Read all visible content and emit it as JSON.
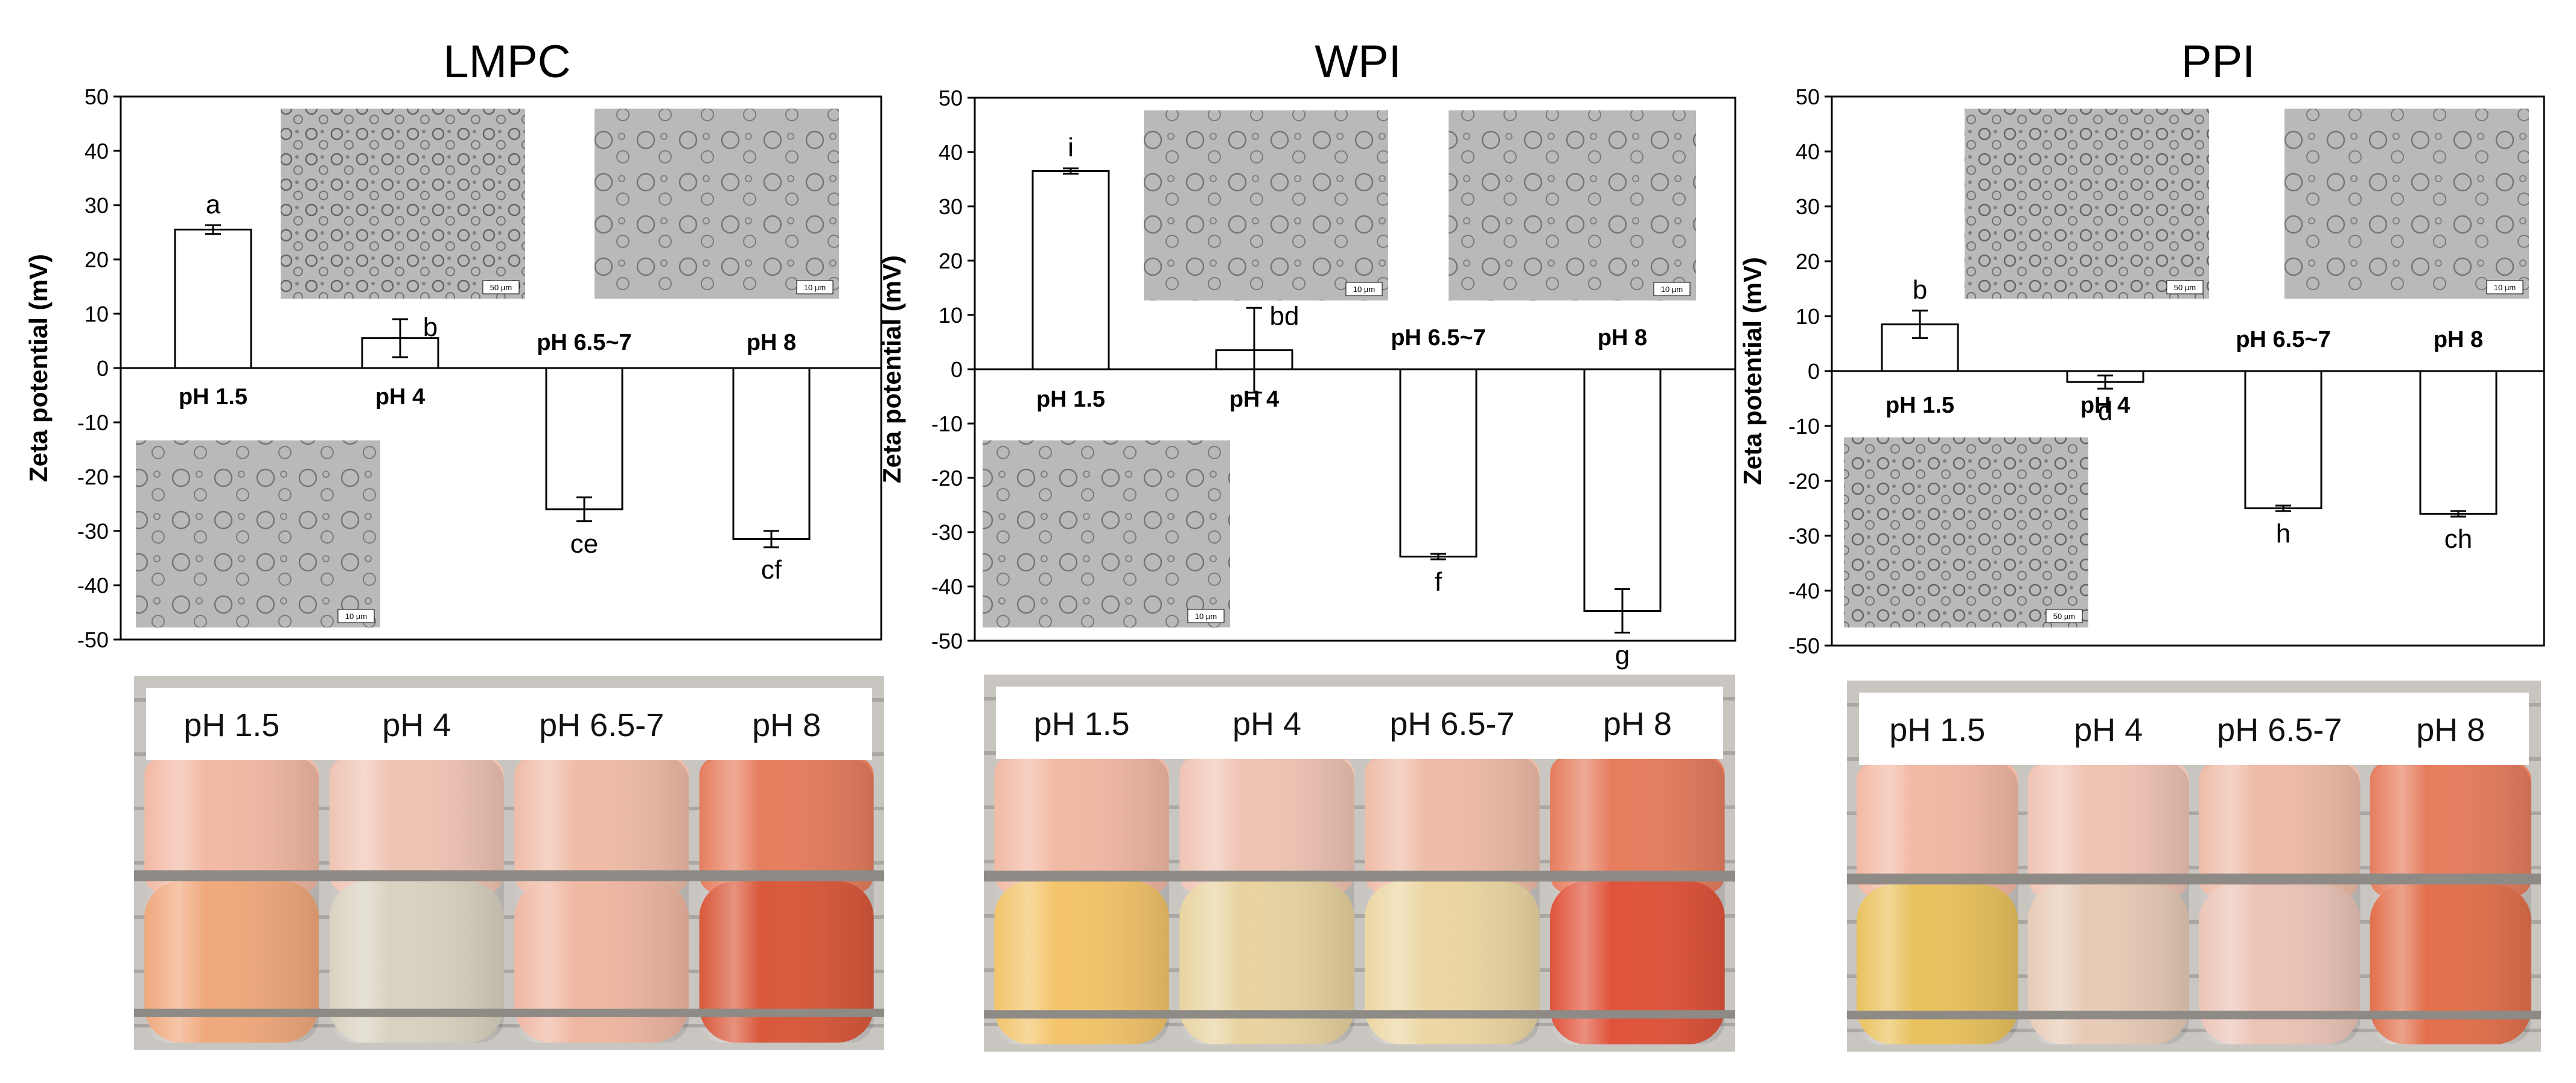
{
  "chart_data": [
    {
      "type": "bar",
      "title": "LMPC",
      "xlabel": "",
      "ylabel": "Zeta potential (mV)",
      "ylim": [
        -50,
        50
      ],
      "yticks": [
        "50",
        "40",
        "30",
        "20",
        "10",
        "0",
        "-10",
        "-20",
        "-30",
        "-40",
        "-50"
      ],
      "categories": [
        "pH 1.5",
        "pH 4",
        "pH 6.5~7",
        "pH 8"
      ],
      "values": [
        25.5,
        5.5,
        -26,
        -31.5
      ],
      "errors": [
        0.8,
        3.5,
        2.2,
        1.5
      ],
      "significance": [
        "a",
        "b",
        "ce",
        "cf"
      ],
      "micrographs": [
        {
          "position": "upper",
          "category": "pH 4",
          "scale_bar": "50 µm"
        },
        {
          "position": "upper",
          "category": "pH 8",
          "scale_bar": "10 µm"
        },
        {
          "position": "lower",
          "category": "pH 1.5",
          "scale_bar": "10 µm"
        }
      ],
      "photo_labels": [
        "pH 1.5",
        "pH 4",
        "pH 6.5-7",
        "pH 8"
      ]
    },
    {
      "type": "bar",
      "title": "WPI",
      "xlabel": "",
      "ylabel": "Zeta potential (mV)",
      "ylim": [
        -50,
        50
      ],
      "yticks": [
        "50",
        "40",
        "30",
        "20",
        "10",
        "0",
        "-10",
        "-20",
        "-30",
        "-40",
        "-50"
      ],
      "categories": [
        "pH 1.5",
        "pH 4",
        "pH 6.5~7",
        "pH 8"
      ],
      "values": [
        36.5,
        3.5,
        -34.5,
        -44.5
      ],
      "errors": [
        0.5,
        7.8,
        0.5,
        4
      ],
      "significance": [
        "i",
        "bd",
        "f",
        "g"
      ],
      "micrographs": [
        {
          "position": "upper",
          "category": "pH 4",
          "scale_bar": "10 µm"
        },
        {
          "position": "upper",
          "category": "pH 8",
          "scale_bar": "10 µm"
        },
        {
          "position": "lower",
          "category": "pH 1.5",
          "scale_bar": "10 µm"
        }
      ],
      "photo_labels": [
        "pH 1.5",
        "pH 4",
        "pH 6.5-7",
        "pH 8"
      ]
    },
    {
      "type": "bar",
      "title": "PPI",
      "xlabel": "",
      "ylabel": "Zeta potential (mV)",
      "ylim": [
        -50,
        50
      ],
      "yticks": [
        "50",
        "40",
        "30",
        "20",
        "10",
        "0",
        "-10",
        "-20",
        "-30",
        "-40",
        "-50"
      ],
      "categories": [
        "pH 1.5",
        "pH 4",
        "pH 6.5~7",
        "pH 8"
      ],
      "values": [
        8.5,
        -2,
        -25,
        -26
      ],
      "errors": [
        2.5,
        1.2,
        0.5,
        0.5
      ],
      "significance": [
        "b",
        "d",
        "h",
        "ch"
      ],
      "micrographs": [
        {
          "position": "upper",
          "category": "pH 4",
          "scale_bar": "50 µm"
        },
        {
          "position": "upper",
          "category": "pH 8",
          "scale_bar": "10 µm"
        },
        {
          "position": "lower",
          "category": "pH 1.5",
          "scale_bar": "50 µm"
        }
      ],
      "photo_labels": [
        "pH 1.5",
        "pH 4",
        "pH 6.5-7",
        "pH 8"
      ]
    }
  ],
  "colors": {
    "bar_fill": "#ffffff",
    "bar_stroke": "#000000",
    "micrograph_bg": "#b9b9b9",
    "liquid_top": [
      "#f2b9a4",
      "#f0c4b4",
      "#efbca8",
      "#e67d5e"
    ],
    "liquid_bottom_lmpc": [
      "#f0a87c",
      "#d9d2c0",
      "#efb7a2",
      "#d9583a"
    ],
    "liquid_bottom_wpi": [
      "#f3c46a",
      "#e8d3a0",
      "#ecd6a2",
      "#e0533a"
    ],
    "liquid_bottom_ppi": [
      "#e9c25e",
      "#e7cbb6",
      "#ecc4b7",
      "#e2704c"
    ]
  }
}
